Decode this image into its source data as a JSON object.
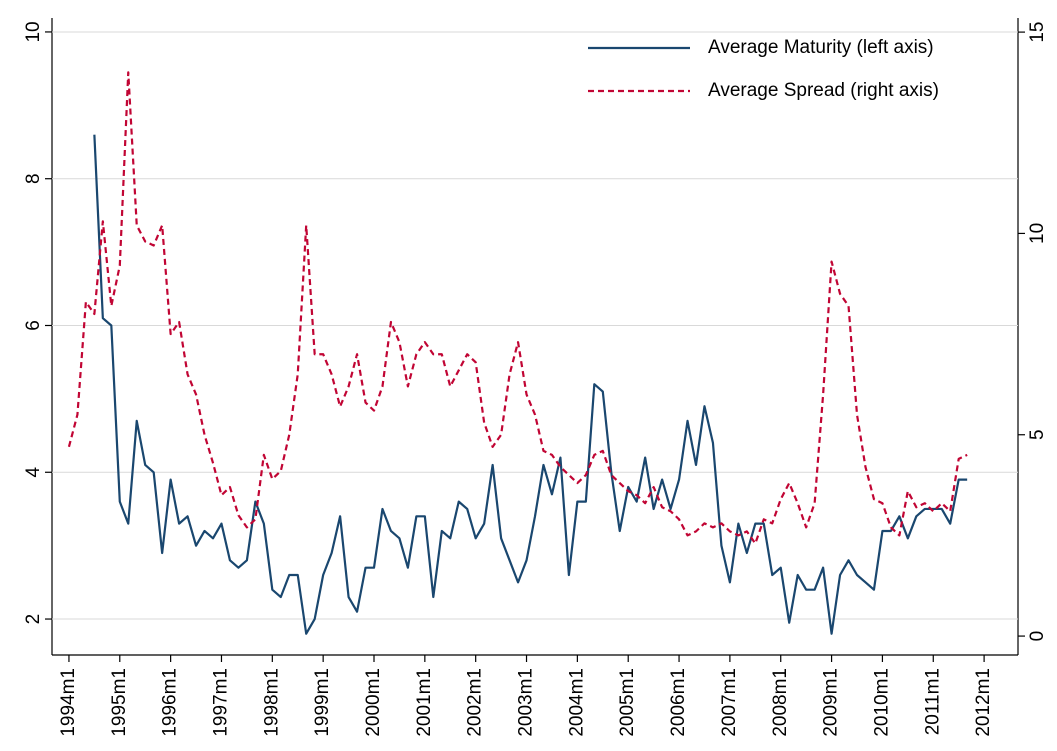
{
  "chart_data": {
    "type": "line",
    "x": [
      408,
      410,
      412,
      414,
      416,
      418,
      420,
      422,
      424,
      426,
      428,
      430,
      432,
      434,
      436,
      438,
      440,
      442,
      444,
      446,
      448,
      450,
      452,
      454,
      456,
      458,
      460,
      462,
      464,
      466,
      468,
      470,
      472,
      474,
      476,
      478,
      480,
      482,
      484,
      486,
      488,
      490,
      492,
      494,
      496,
      498,
      500,
      502,
      504,
      506,
      508,
      510,
      512,
      514,
      516,
      518,
      520,
      522,
      524,
      526,
      528,
      530,
      532,
      534,
      536,
      538,
      540,
      542,
      544,
      546,
      548,
      550,
      552,
      554,
      556,
      558,
      560,
      562,
      564,
      566,
      568,
      570,
      572,
      574,
      576,
      578,
      580,
      582,
      584,
      586,
      588,
      590,
      592,
      594,
      596,
      598,
      600,
      602,
      604,
      606,
      608,
      610,
      612,
      614,
      616,
      618,
      620
    ],
    "series": [
      {
        "name": "Average Maturity (left axis)",
        "color": "#1a476f",
        "axis": "y",
        "dashed": false,
        "values": [
          null,
          null,
          null,
          8.6,
          6.1,
          6.0,
          3.6,
          3.3,
          4.7,
          4.1,
          4.0,
          2.9,
          3.9,
          3.3,
          3.4,
          3.0,
          3.2,
          3.1,
          3.3,
          2.8,
          2.7,
          2.8,
          3.6,
          3.3,
          2.4,
          2.3,
          2.6,
          2.6,
          1.8,
          2.0,
          2.6,
          2.9,
          3.4,
          2.3,
          2.1,
          2.7,
          2.7,
          3.5,
          3.2,
          3.1,
          2.7,
          3.4,
          3.4,
          2.3,
          3.2,
          3.1,
          3.6,
          3.5,
          3.1,
          3.3,
          4.1,
          3.1,
          2.8,
          2.5,
          2.8,
          3.4,
          4.1,
          3.7,
          4.2,
          2.6,
          3.6,
          3.6,
          5.2,
          5.1,
          4.0,
          3.2,
          3.8,
          3.6,
          4.2,
          3.5,
          3.9,
          3.5,
          3.9,
          4.7,
          4.1,
          4.9,
          4.4,
          3.0,
          2.5,
          3.3,
          2.9,
          3.3,
          3.3,
          2.6,
          2.7,
          1.95,
          2.6,
          2.4,
          2.4,
          2.7,
          1.8,
          2.6,
          2.8,
          2.6,
          2.5,
          2.4,
          3.2,
          3.2,
          3.4,
          3.1,
          3.4,
          3.5,
          3.5,
          3.5,
          3.3,
          3.9,
          3.9
        ]
      },
      {
        "name": "Average Spread (right axis)",
        "color": "#c10534",
        "axis": "y2",
        "dashed": true,
        "values": [
          4.7,
          5.5,
          8.3,
          8.0,
          10.3,
          8.2,
          9.2,
          14.0,
          10.2,
          9.8,
          9.7,
          10.2,
          7.5,
          7.8,
          6.5,
          6.0,
          5.0,
          4.3,
          3.5,
          3.7,
          3.0,
          2.7,
          2.9,
          4.5,
          3.9,
          4.1,
          5.0,
          6.5,
          10.2,
          7.0,
          7.0,
          6.5,
          5.7,
          6.2,
          7.0,
          5.8,
          5.6,
          6.2,
          7.8,
          7.3,
          6.2,
          7.0,
          7.3,
          7.0,
          7.0,
          6.2,
          6.6,
          7.0,
          6.8,
          5.3,
          4.7,
          5.0,
          6.5,
          7.3,
          6.0,
          5.5,
          4.6,
          4.5,
          4.2,
          4.0,
          3.8,
          4.0,
          4.5,
          4.6,
          4.0,
          3.8,
          3.6,
          3.5,
          3.3,
          3.7,
          3.2,
          3.1,
          2.9,
          2.5,
          2.6,
          2.8,
          2.7,
          2.8,
          2.6,
          2.5,
          2.6,
          2.3,
          2.9,
          2.8,
          3.4,
          3.8,
          3.3,
          2.7,
          3.3,
          6.0,
          9.3,
          8.5,
          8.2,
          5.5,
          4.2,
          3.4,
          3.3,
          2.7,
          2.5,
          3.6,
          3.2,
          3.3,
          3.1,
          3.3,
          3.1,
          4.4,
          4.5
        ]
      }
    ],
    "xlim": [
      404,
      632
    ],
    "xticks": [
      {
        "value": 408,
        "label": "1994m1"
      },
      {
        "value": 420,
        "label": "1995m1"
      },
      {
        "value": 432,
        "label": "1996m1"
      },
      {
        "value": 444,
        "label": "1997m1"
      },
      {
        "value": 456,
        "label": "1998m1"
      },
      {
        "value": 468,
        "label": "1999m1"
      },
      {
        "value": 480,
        "label": "2000m1"
      },
      {
        "value": 492,
        "label": "2001m1"
      },
      {
        "value": 504,
        "label": "2002m1"
      },
      {
        "value": 516,
        "label": "2003m1"
      },
      {
        "value": 528,
        "label": "2004m1"
      },
      {
        "value": 540,
        "label": "2005m1"
      },
      {
        "value": 552,
        "label": "2006m1"
      },
      {
        "value": 564,
        "label": "2007m1"
      },
      {
        "value": 576,
        "label": "2008m1"
      },
      {
        "value": 588,
        "label": "2009m1"
      },
      {
        "value": 600,
        "label": "2010m1"
      },
      {
        "value": 612,
        "label": "2011m1"
      },
      {
        "value": 624,
        "label": "2012m1"
      }
    ],
    "ylim": [
      1.51,
      10.19
    ],
    "yticks": [
      2,
      4,
      6,
      8,
      10
    ],
    "y2lim": [
      -0.47,
      15.35
    ],
    "y2ticks": [
      0,
      5,
      10,
      15
    ],
    "grid": true,
    "legend": "top-right"
  }
}
